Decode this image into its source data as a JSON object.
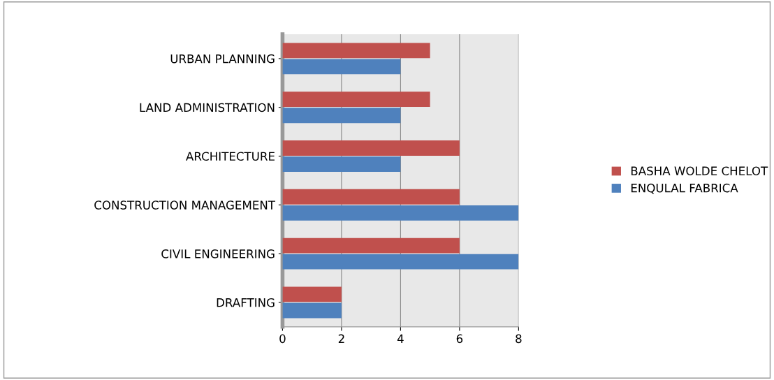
{
  "chart_data": {
    "type": "bar",
    "orientation": "horizontal",
    "categories": [
      "URBAN PLANNING",
      "LAND ADMINISTRATION",
      "ARCHITECTURE",
      "CONSTRUCTION MANAGEMENT",
      "CIVIL ENGINEERING",
      "DRAFTING"
    ],
    "series": [
      {
        "name": "BASHA WOLDE CHELOT",
        "color": "#c0504d",
        "values": [
          5,
          5,
          6,
          6,
          6,
          2
        ]
      },
      {
        "name": "ENQULAL FABRICA",
        "color": "#4f81bd",
        "values": [
          4,
          4,
          4,
          8,
          8,
          2
        ]
      }
    ],
    "xlim": [
      0,
      8
    ],
    "xticks": [
      0,
      2,
      4,
      6,
      8
    ],
    "grid": "x",
    "legend": "right"
  }
}
